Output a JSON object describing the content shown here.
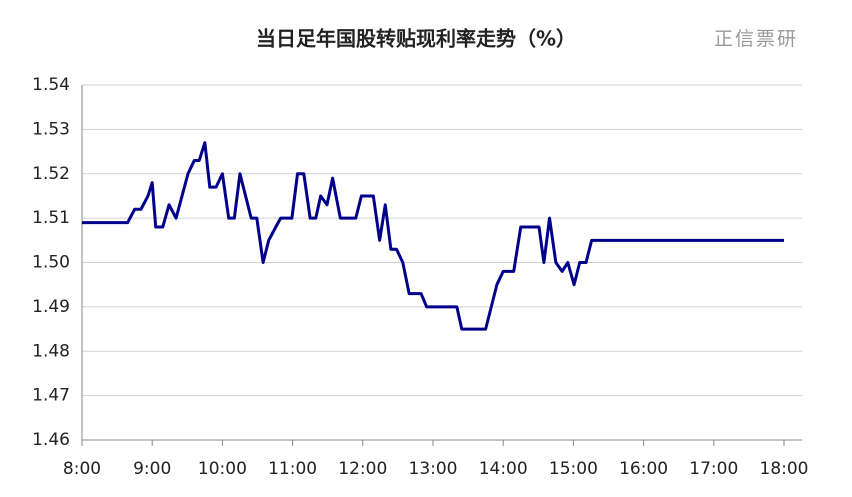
{
  "chart_data": {
    "type": "line",
    "title": "当日足年国股转贴现利率走势（%）",
    "watermark": "正信票研",
    "x": [
      8.0,
      8.65,
      8.75,
      8.84,
      8.94,
      9.0,
      9.05,
      9.15,
      9.24,
      9.34,
      9.51,
      9.6,
      9.67,
      9.75,
      9.82,
      9.91,
      10.0,
      10.09,
      10.17,
      10.25,
      10.41,
      10.49,
      10.58,
      10.66,
      10.76,
      10.83,
      10.99,
      11.07,
      11.16,
      11.25,
      11.33,
      11.4,
      11.49,
      11.57,
      11.68,
      11.9,
      11.98,
      12.15,
      12.24,
      12.32,
      12.4,
      12.48,
      12.57,
      12.66,
      12.83,
      12.91,
      13.34,
      13.41,
      13.75,
      13.91,
      14.0,
      14.15,
      14.25,
      14.51,
      14.58,
      14.66,
      14.75,
      14.84,
      14.92,
      15.01,
      15.09,
      15.18,
      15.26,
      18.0
    ],
    "series": [
      {
        "color": "#00008b",
        "values": [
          1.509,
          1.509,
          1.512,
          1.512,
          1.515,
          1.518,
          1.508,
          1.508,
          1.513,
          1.51,
          1.52,
          1.523,
          1.523,
          1.527,
          1.517,
          1.517,
          1.52,
          1.51,
          1.51,
          1.52,
          1.51,
          1.51,
          1.5,
          1.505,
          1.508,
          1.51,
          1.51,
          1.52,
          1.52,
          1.51,
          1.51,
          1.515,
          1.513,
          1.519,
          1.51,
          1.51,
          1.515,
          1.515,
          1.505,
          1.513,
          1.503,
          1.503,
          1.5,
          1.493,
          1.493,
          1.49,
          1.49,
          1.485,
          1.485,
          1.495,
          1.498,
          1.498,
          1.508,
          1.508,
          1.5,
          1.51,
          1.5,
          1.498,
          1.5,
          1.495,
          1.5,
          1.5,
          1.505,
          1.505
        ]
      }
    ],
    "xlim": [
      8,
      18
    ],
    "xticks": [
      {
        "value": 8,
        "label": "8:00"
      },
      {
        "value": 9,
        "label": "9:00"
      },
      {
        "value": 10,
        "label": "10:00"
      },
      {
        "value": 11,
        "label": "11:00"
      },
      {
        "value": 12,
        "label": "12:00"
      },
      {
        "value": 13,
        "label": "13:00"
      },
      {
        "value": 14,
        "label": "14:00"
      },
      {
        "value": 15,
        "label": "15:00"
      },
      {
        "value": 16,
        "label": "16:00"
      },
      {
        "value": 17,
        "label": "17:00"
      },
      {
        "value": 18,
        "label": "18:00"
      }
    ],
    "ylim": [
      1.46,
      1.54
    ],
    "yticks": [
      {
        "value": 1.46,
        "label": "1.46"
      },
      {
        "value": 1.47,
        "label": "1.47"
      },
      {
        "value": 1.48,
        "label": "1.48"
      },
      {
        "value": 1.49,
        "label": "1.49"
      },
      {
        "value": 1.5,
        "label": "1.50"
      },
      {
        "value": 1.51,
        "label": "1.51"
      },
      {
        "value": 1.52,
        "label": "1.52"
      },
      {
        "value": 1.53,
        "label": "1.53"
      },
      {
        "value": 1.54,
        "label": "1.54"
      }
    ],
    "grid": true
  }
}
